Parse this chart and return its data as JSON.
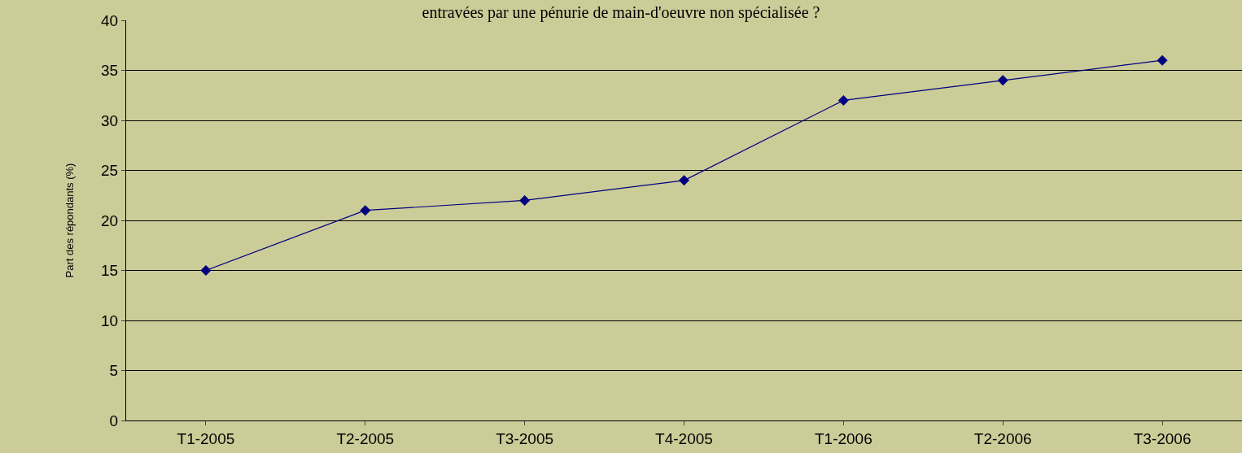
{
  "chart_data": {
    "type": "line",
    "title": "entravées par une pénurie de main-d'oeuvre non spécialisée ?",
    "ylabel": "Part des répondants (%)",
    "categories": [
      "T1-2005",
      "T2-2005",
      "T3-2005",
      "T4-2005",
      "T1-2006",
      "T2-2006",
      "T3-2006"
    ],
    "series": [
      {
        "color": "#000080",
        "values": [
          15,
          21,
          22,
          24,
          32,
          34,
          36
        ]
      }
    ],
    "ylim": [
      0,
      40
    ],
    "yticks": [
      0,
      5,
      10,
      15,
      20,
      25,
      30,
      35,
      40
    ],
    "grid": "y",
    "marker": "diamond",
    "line_style": "solid",
    "legend": false
  }
}
